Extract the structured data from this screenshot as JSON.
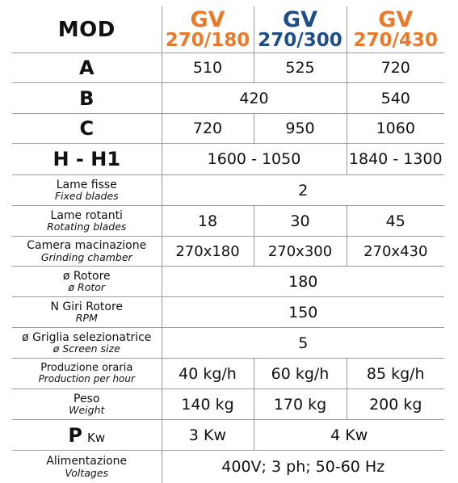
{
  "header": {
    "mod_label": "MOD",
    "models": [
      {
        "name": "GV",
        "size": "270/180",
        "color": "#ea7a2a"
      },
      {
        "name": "GV",
        "size": "270/300",
        "color": "#1f4e86"
      },
      {
        "name": "GV",
        "size": "270/430",
        "color": "#ea7a2a"
      }
    ]
  },
  "rows": {
    "A": {
      "label": "A",
      "values": [
        "510",
        "525",
        "720"
      ]
    },
    "B": {
      "label": "B",
      "shared_1_2": "420",
      "value_3": "540"
    },
    "C": {
      "label": "C",
      "values": [
        "720",
        "950",
        "1060"
      ]
    },
    "H": {
      "label": "H - H1",
      "shared_1_2": "1600 - 1050",
      "value_3": "1840 - 1300"
    },
    "fixed_blades": {
      "label_it": "Lame fisse",
      "label_en": "Fixed blades",
      "value": "2"
    },
    "rotating_blades": {
      "label_it": "Lame rotanti",
      "label_en": "Rotating blades",
      "values": [
        "18",
        "30",
        "45"
      ]
    },
    "grinding_chamber": {
      "label_it": "Camera macinazione",
      "label_en": "Grinding chamber",
      "values": [
        "270x180",
        "270x300",
        "270x430"
      ]
    },
    "rotor": {
      "label_it": "ø Rotore",
      "label_en": "ø Rotor",
      "value": "180"
    },
    "rpm": {
      "label_it": "N Giri Rotore",
      "label_en": "RPM",
      "value": "150"
    },
    "screen": {
      "label_it": "ø Griglia selezionatrice",
      "label_en": "ø Screen size",
      "value": "5"
    },
    "production": {
      "label_it": "Produzione oraria",
      "label_en": "Production per hour",
      "values": [
        "40 kg/h",
        "60 kg/h",
        "85 kg/h"
      ]
    },
    "weight": {
      "label_it": "Peso",
      "label_en": "Weight",
      "values": [
        "140 kg",
        "170 kg",
        "200 kg"
      ]
    },
    "power": {
      "label": "P",
      "unit": "Kw",
      "value_1": "3 Kw",
      "shared_2_3": "4 Kw"
    },
    "voltages": {
      "label_it": "Alimentazione",
      "label_en": "Voltages",
      "value": "400V; 3 ph; 50-60 Hz"
    }
  }
}
